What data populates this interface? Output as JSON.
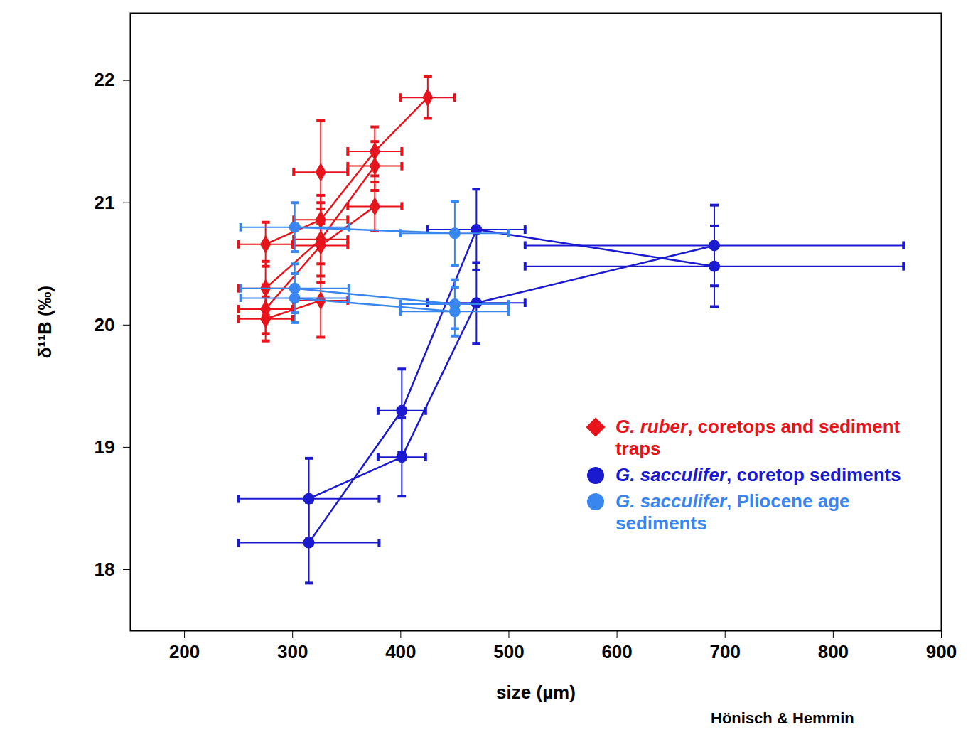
{
  "chart_data": {
    "type": "scatter",
    "x_label": "size (µm)",
    "y_label": "δ¹¹B (‰)",
    "caption": "Hönisch & Hemmin",
    "xlim": [
      150,
      900
    ],
    "xticks": [
      200,
      300,
      400,
      500,
      600,
      700,
      800,
      900
    ],
    "ylim": [
      17.5,
      22.55
    ],
    "yticks": [
      18,
      19,
      20,
      21,
      22
    ],
    "grid": false,
    "legend": "lower right",
    "series": [
      {
        "name": "G. ruber, coretops and sediment traps",
        "color": "#e8141b",
        "marker": "diamond",
        "lines": [
          {
            "x": [
              275,
              326,
              376,
              425
            ],
            "values": [
              20.66,
              20.86,
              21.42,
              21.86
            ],
            "x_error": [
              25,
              25,
              25,
              25
            ],
            "y_error": [
              0.18,
              0.2,
              0.2,
              0.17
            ]
          },
          {
            "x": [
              275,
              326,
              376
            ],
            "values": [
              20.3,
              20.7,
              21.3
            ],
            "x_error": [
              25,
              25,
              25
            ],
            "y_error": [
              0.22,
              0.3,
              0.2
            ]
          },
          {
            "x": [
              275,
              326,
              376
            ],
            "values": [
              20.13,
              20.65,
              20.97
            ],
            "x_error": [
              25,
              25,
              25
            ],
            "y_error": [
              0.2,
              0.3,
              0.2
            ]
          },
          {
            "x": [
              275,
              326
            ],
            "values": [
              20.05,
              20.2
            ],
            "x_error": [
              25,
              25
            ],
            "y_error": [
              0.18,
              0.3
            ]
          },
          {
            "x": [
              326
            ],
            "values": [
              21.25
            ],
            "x_error": [
              25
            ],
            "y_error": [
              0.42
            ]
          }
        ]
      },
      {
        "name": "G. sacculifer, coretop sediments",
        "color": "#1a1ad0",
        "marker": "circle",
        "lines": [
          {
            "x": [
              315,
              401,
              470,
              690
            ],
            "values": [
              18.22,
              19.3,
              20.78,
              20.48
            ],
            "x_error": [
              65,
              22,
              45,
              175
            ],
            "y_error": [
              0.33,
              0.34,
              0.33,
              0.33
            ]
          },
          {
            "x": [
              315,
              401,
              470,
              690
            ],
            "values": [
              18.58,
              18.92,
              20.18,
              20.65
            ],
            "x_error": [
              65,
              22,
              45,
              175
            ],
            "y_error": [
              0.33,
              0.32,
              0.33,
              0.33
            ]
          }
        ]
      },
      {
        "name": "G. sacculifer, Pliocene age sediments",
        "color": "#3a86f0",
        "marker": "circle",
        "lines": [
          {
            "x": [
              302,
              450
            ],
            "values": [
              20.8,
              20.75
            ],
            "x_error": [
              50,
              50
            ],
            "y_error": [
              0.2,
              0.26
            ]
          },
          {
            "x": [
              302,
              450
            ],
            "values": [
              20.3,
              20.17
            ],
            "x_error": [
              50,
              50
            ],
            "y_error": [
              0.2,
              0.2
            ]
          },
          {
            "x": [
              302,
              450
            ],
            "values": [
              20.22,
              20.11
            ],
            "x_error": [
              50,
              50
            ],
            "y_error": [
              0.2,
              0.2
            ]
          }
        ]
      }
    ]
  }
}
